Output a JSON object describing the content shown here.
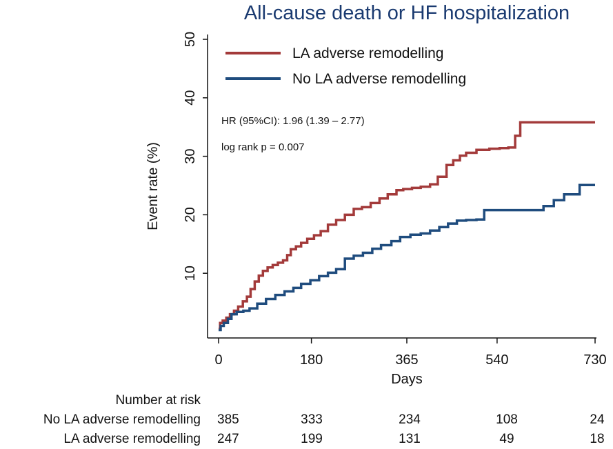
{
  "chart_data": {
    "type": "line",
    "title": "All-cause death or HF hospitalization",
    "xlabel": "Days",
    "ylabel": "Event rate (%)",
    "xlim": [
      0,
      730
    ],
    "ylim": [
      0,
      50
    ],
    "x_ticks": [
      0,
      180,
      365,
      540,
      730
    ],
    "x_tick_labels": [
      "0",
      "180",
      "365",
      "540",
      "730"
    ],
    "y_ticks": [
      10,
      20,
      30,
      40,
      50
    ],
    "y_tick_labels": [
      "10",
      "20",
      "30",
      "40",
      "50"
    ],
    "grid": false,
    "legend_position": "top-left",
    "series": [
      {
        "name": "LA adverse remodelling",
        "color": "#a33a3a",
        "x": [
          0,
          3,
          8,
          15,
          22,
          30,
          38,
          47,
          55,
          62,
          70,
          78,
          86,
          95,
          105,
          115,
          125,
          133,
          140,
          150,
          160,
          172,
          185,
          198,
          212,
          228,
          245,
          262,
          278,
          295,
          312,
          328,
          345,
          358,
          375,
          392,
          410,
          425,
          442,
          455,
          468,
          480,
          500,
          525,
          545,
          562,
          575,
          585,
          598,
          620,
          660,
          730
        ],
        "y": [
          0.5,
          1.5,
          1.9,
          2.4,
          3.0,
          3.6,
          4.3,
          5.2,
          6.0,
          7.3,
          8.6,
          9.6,
          10.4,
          11.0,
          11.4,
          11.8,
          12.2,
          13.1,
          14.1,
          14.6,
          15.2,
          15.9,
          16.5,
          17.2,
          18.3,
          19.1,
          20.0,
          21.0,
          21.3,
          22.0,
          22.8,
          23.5,
          24.2,
          24.4,
          24.6,
          24.8,
          25.2,
          26.5,
          28.5,
          29.3,
          30.1,
          30.6,
          31.1,
          31.3,
          31.4,
          31.5,
          33.5,
          35.8,
          35.8,
          35.8,
          35.8,
          35.8
        ]
      },
      {
        "name": "No LA adverse remodelling",
        "color": "#1f4c7e",
        "x": [
          0,
          4,
          10,
          18,
          25,
          35,
          48,
          60,
          75,
          92,
          110,
          128,
          145,
          160,
          178,
          195,
          212,
          228,
          245,
          262,
          280,
          298,
          315,
          335,
          352,
          372,
          392,
          410,
          428,
          445,
          462,
          480,
          500,
          515,
          540,
          560,
          580,
          600,
          630,
          650,
          670,
          700,
          730
        ],
        "y": [
          0.3,
          1.0,
          1.5,
          2.2,
          3.0,
          3.4,
          3.6,
          4.0,
          4.8,
          5.6,
          6.3,
          6.9,
          7.5,
          8.2,
          8.8,
          9.5,
          10.1,
          10.7,
          12.5,
          13.0,
          13.5,
          14.2,
          14.8,
          15.5,
          16.2,
          16.6,
          16.8,
          17.3,
          17.9,
          18.5,
          19.0,
          19.1,
          19.2,
          20.8,
          20.8,
          20.8,
          20.8,
          20.8,
          21.5,
          22.5,
          23.5,
          25.1,
          25.1
        ]
      }
    ]
  },
  "annotations": {
    "hr": "HR (95%CI): 1.96 (1.39 – 2.77)",
    "logrank": "log rank p = 0.007"
  },
  "risk_table": {
    "heading": "Number at risk",
    "rows": [
      {
        "label": "No LA adverse remodelling",
        "values": [
          "385",
          "333",
          "234",
          "108",
          "24"
        ]
      },
      {
        "label": "LA adverse remodelling",
        "values": [
          "247",
          "199",
          "131",
          "49",
          "18"
        ]
      }
    ]
  }
}
